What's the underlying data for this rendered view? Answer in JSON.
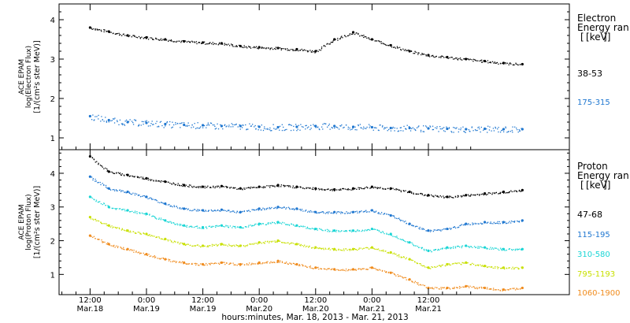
{
  "chart_data": [
    {
      "type": "scatter",
      "panel": "electron",
      "ylabel_lines": [
        "ACE EPAM",
        "log(Electron Flux)",
        "[1/(cm²s ster MeV)]"
      ],
      "ylim": [
        0.7,
        4.4
      ],
      "yticks": [
        1,
        2,
        3,
        4
      ],
      "legend_title_lines": [
        "Electron",
        "Energy ran",
        "[keV]"
      ],
      "x": [
        0,
        4,
        8,
        12,
        16,
        20,
        24,
        28,
        32,
        36,
        40,
        44,
        48,
        52,
        56,
        60,
        64,
        68,
        72,
        76,
        80,
        84,
        88,
        92
      ],
      "series": [
        {
          "name": "38-53",
          "color": "#000000",
          "values": [
            3.8,
            3.7,
            3.6,
            3.55,
            3.5,
            3.45,
            3.42,
            3.4,
            3.33,
            3.3,
            3.28,
            3.25,
            3.2,
            3.5,
            3.68,
            3.5,
            3.35,
            3.2,
            3.1,
            3.05,
            3.0,
            2.95,
            2.9,
            2.87
          ]
        },
        {
          "name": "175-315",
          "color": "#1f77d0",
          "values": [
            1.55,
            1.45,
            1.4,
            1.38,
            1.35,
            1.33,
            1.32,
            1.3,
            1.3,
            1.28,
            1.27,
            1.28,
            1.3,
            1.3,
            1.28,
            1.27,
            1.25,
            1.25,
            1.24,
            1.23,
            1.22,
            1.23,
            1.22,
            1.22
          ]
        }
      ]
    },
    {
      "type": "scatter",
      "panel": "proton",
      "ylabel_lines": [
        "ACE EPAM",
        "log(Proton Flux)",
        "[1/(cm²s ster MeV)]"
      ],
      "ylim": [
        0.4,
        4.7
      ],
      "yticks": [
        1,
        2,
        3,
        4
      ],
      "legend_title_lines": [
        "Proton",
        "Energy ran",
        "[keV]"
      ],
      "x": [
        0,
        4,
        8,
        12,
        16,
        20,
        24,
        28,
        32,
        36,
        40,
        44,
        48,
        52,
        56,
        60,
        64,
        68,
        72,
        76,
        80,
        84,
        88,
        92
      ],
      "series": [
        {
          "name": "47-68",
          "color": "#000000",
          "values": [
            4.5,
            4.05,
            3.95,
            3.85,
            3.75,
            3.65,
            3.6,
            3.62,
            3.55,
            3.6,
            3.65,
            3.6,
            3.55,
            3.52,
            3.55,
            3.6,
            3.55,
            3.45,
            3.35,
            3.3,
            3.35,
            3.4,
            3.45,
            3.5
          ]
        },
        {
          "name": "115-195",
          "color": "#1f77d0",
          "values": [
            3.9,
            3.55,
            3.45,
            3.3,
            3.1,
            2.95,
            2.9,
            2.92,
            2.85,
            2.95,
            3.0,
            2.95,
            2.85,
            2.85,
            2.85,
            2.9,
            2.75,
            2.5,
            2.3,
            2.35,
            2.5,
            2.55,
            2.55,
            2.6
          ]
        },
        {
          "name": "310-580",
          "color": "#1ad5d5",
          "values": [
            3.3,
            3.0,
            2.9,
            2.8,
            2.6,
            2.45,
            2.4,
            2.45,
            2.4,
            2.5,
            2.55,
            2.45,
            2.35,
            2.3,
            2.3,
            2.35,
            2.2,
            1.95,
            1.7,
            1.8,
            1.85,
            1.8,
            1.75,
            1.75
          ]
        },
        {
          "name": "795-1193",
          "color": "#c8e000",
          "values": [
            2.7,
            2.45,
            2.3,
            2.2,
            2.05,
            1.9,
            1.85,
            1.9,
            1.85,
            1.95,
            2.0,
            1.9,
            1.8,
            1.75,
            1.75,
            1.8,
            1.65,
            1.45,
            1.2,
            1.3,
            1.35,
            1.25,
            1.2,
            1.2
          ]
        },
        {
          "name": "1060-1900",
          "color": "#f08c1e",
          "values": [
            2.15,
            1.9,
            1.75,
            1.6,
            1.45,
            1.35,
            1.3,
            1.35,
            1.3,
            1.35,
            1.4,
            1.3,
            1.2,
            1.15,
            1.15,
            1.2,
            1.05,
            0.85,
            0.6,
            0.6,
            0.65,
            0.6,
            0.55,
            0.6
          ]
        }
      ]
    }
  ],
  "x_axis": {
    "xlim": [
      -6.6,
      102
    ],
    "ticks": [
      {
        "x": 0,
        "time": "12:00",
        "date": "Mar.18"
      },
      {
        "x": 12,
        "time": "0:00",
        "date": "Mar.19"
      },
      {
        "x": 24,
        "time": "12:00",
        "date": "Mar.19"
      },
      {
        "x": 36,
        "time": "0:00",
        "date": "Mar.20"
      },
      {
        "x": 48,
        "time": "12:00",
        "date": "Mar.20"
      },
      {
        "x": 60,
        "time": "0:00",
        "date": "Mar.21"
      },
      {
        "x": 72,
        "time": "12:00",
        "date": "Mar.21"
      }
    ],
    "xlabel": "hours:minutes, Mar. 18, 2013 - Mar. 21, 2013"
  }
}
